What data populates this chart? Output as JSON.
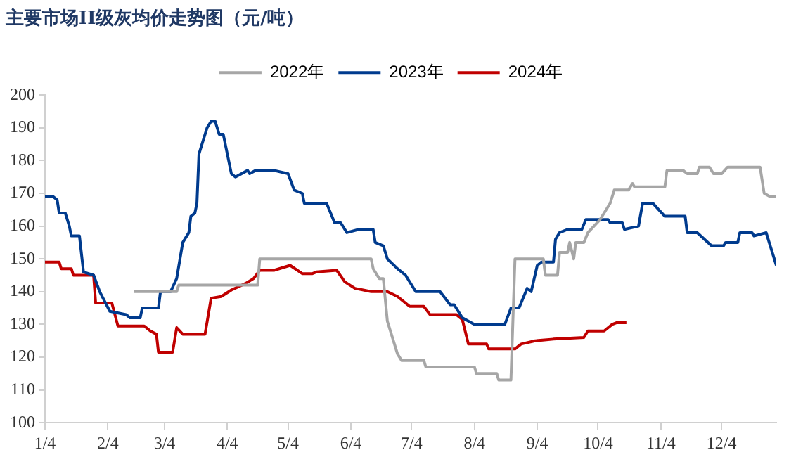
{
  "chart_data": {
    "type": "line",
    "title": "主要市场II级灰均价走势图（元/吨）",
    "legend": "top",
    "xlim": [
      "--01-04",
      "--12-31"
    ],
    "xticks": [
      {
        "value": "--01-04",
        "label": "1/4"
      },
      {
        "value": "--02-04",
        "label": "2/4"
      },
      {
        "value": "--03-04",
        "label": "3/4"
      },
      {
        "value": "--04-04",
        "label": "4/4"
      },
      {
        "value": "--05-04",
        "label": "5/4"
      },
      {
        "value": "--06-04",
        "label": "6/4"
      },
      {
        "value": "--07-04",
        "label": "7/4"
      },
      {
        "value": "--08-04",
        "label": "8/4"
      },
      {
        "value": "--09-04",
        "label": "9/4"
      },
      {
        "value": "--10-04",
        "label": "10/4"
      },
      {
        "value": "--11-04",
        "label": "11/4"
      },
      {
        "value": "--12-04",
        "label": "12/4"
      }
    ],
    "ylim": [
      100,
      200
    ],
    "yticks": [
      100,
      110,
      120,
      130,
      140,
      150,
      160,
      170,
      180,
      190,
      200
    ],
    "series": [
      {
        "name": "2022年",
        "color": "#a6a6a6",
        "x": [
          "--02-17",
          "--03-10",
          "--03-11",
          "--04-19",
          "--04-20",
          "--06-14",
          "--06-15",
          "--06-18",
          "--06-20",
          "--06-22",
          "--06-27",
          "--06-29",
          "--07-10",
          "--07-11",
          "--08-04",
          "--08-05",
          "--08-15",
          "--08-16",
          "--08-22",
          "--08-24",
          "--09-07",
          "--09-08",
          "--09-14",
          "--09-15",
          "--09-19",
          "--09-20",
          "--09-22",
          "--09-23",
          "--09-27",
          "--09-29",
          "--10-05",
          "--10-10",
          "--10-12",
          "--10-19",
          "--10-21",
          "--10-22",
          "--11-06",
          "--11-07",
          "--11-15",
          "--11-17",
          "--11-22",
          "--11-23",
          "--11-28",
          "--11-30",
          "--12-04",
          "--12-07",
          "--12-23",
          "--12-25",
          "--12-28",
          "--12-31"
        ],
        "values": [
          140,
          140,
          142,
          142,
          150,
          150,
          147,
          144,
          144,
          131,
          121,
          119,
          119,
          117,
          117,
          115,
          115,
          113,
          113,
          150,
          150,
          145,
          145,
          152,
          152,
          155,
          150,
          155,
          155,
          158,
          162,
          167,
          171,
          171,
          173,
          172,
          172,
          177,
          177,
          176,
          176,
          178,
          178,
          176,
          176,
          178,
          178,
          170,
          169,
          169
        ]
      },
      {
        "name": "2023年",
        "color": "#003b8e",
        "x": [
          "--01-04",
          "--01-08",
          "--01-10",
          "--01-11",
          "--01-14",
          "--01-16",
          "--01-17",
          "--01-21",
          "--01-23",
          "--01-28",
          "--01-31",
          "--02-05",
          "--02-13",
          "--02-15",
          "--02-20",
          "--02-21",
          "--03-01",
          "--03-02",
          "--03-07",
          "--03-10",
          "--03-13",
          "--03-16",
          "--03-17",
          "--03-19",
          "--03-20",
          "--03-21",
          "--03-23",
          "--03-25",
          "--03-27",
          "--03-29",
          "--03-31",
          "--04-02",
          "--04-06",
          "--04-08",
          "--04-14",
          "--04-15",
          "--04-18",
          "--04-27",
          "--05-04",
          "--05-07",
          "--05-11",
          "--05-12",
          "--05-23",
          "--05-27",
          "--05-30",
          "--06-02",
          "--06-08",
          "--06-15",
          "--06-16",
          "--06-20",
          "--06-22",
          "--06-27",
          "--07-01",
          "--07-06",
          "--07-18",
          "--07-23",
          "--07-25",
          "--07-29",
          "--08-04",
          "--08-19",
          "--08-22",
          "--08-26",
          "--08-30",
          "--09-01",
          "--09-04",
          "--09-06",
          "--09-12",
          "--09-13",
          "--09-15",
          "--09-19",
          "--09-26",
          "--09-28",
          "--10-09",
          "--10-10",
          "--10-16",
          "--10-17",
          "--10-24",
          "--10-26",
          "--10-31",
          "--11-03",
          "--11-06",
          "--11-16",
          "--11-17",
          "--11-22",
          "--11-29",
          "--12-05",
          "--12-06",
          "--12-12",
          "--12-13",
          "--12-19",
          "--12-20",
          "--12-26",
          "--12-28",
          "--12-31"
        ],
        "values": [
          169,
          169,
          168,
          164,
          164,
          160,
          157,
          157,
          146,
          145,
          140,
          134,
          133,
          132,
          132,
          135,
          135,
          140,
          140,
          144,
          155,
          158,
          163,
          164,
          167,
          182,
          186,
          190,
          192,
          192,
          188,
          188,
          176,
          175,
          177,
          176,
          177,
          177,
          176,
          171,
          170,
          167,
          167,
          161,
          161,
          158,
          159,
          159,
          155,
          154,
          150,
          147,
          145,
          140,
          140,
          136,
          136,
          132,
          130,
          130,
          135,
          135,
          141,
          140,
          148,
          149,
          149,
          156,
          158,
          159,
          159,
          162,
          162,
          161,
          161,
          159,
          160,
          167,
          167,
          165,
          163,
          163,
          158,
          158,
          154,
          154,
          155,
          155,
          158,
          158,
          157,
          158,
          154,
          148
        ]
      },
      {
        "name": "2024年",
        "color": "#c00000",
        "x": [
          "--01-04",
          "--01-11",
          "--01-12",
          "--01-17",
          "--01-18",
          "--01-28",
          "--01-29",
          "--02-06",
          "--02-09",
          "--02-22",
          "--02-25",
          "--02-28",
          "--03-01",
          "--03-08",
          "--03-10",
          "--03-13",
          "--03-24",
          "--03-27",
          "--04-01",
          "--04-06",
          "--04-13",
          "--04-17",
          "--04-20",
          "--04-27",
          "--05-05",
          "--05-11",
          "--05-16",
          "--05-18",
          "--05-28",
          "--06-01",
          "--06-06",
          "--06-14",
          "--06-22",
          "--06-27",
          "--07-03",
          "--07-10",
          "--07-13",
          "--07-26",
          "--07-29",
          "--08-01",
          "--08-10",
          "--08-11",
          "--08-24",
          "--08-27",
          "--09-03",
          "--09-12",
          "--09-27",
          "--09-29",
          "--10-07",
          "--10-11",
          "--10-13",
          "--10-18"
        ],
        "values": [
          149,
          149,
          147,
          147,
          145,
          145,
          136.5,
          136.5,
          129.5,
          129.5,
          128,
          127,
          121.5,
          121.5,
          129,
          127,
          127,
          138,
          138.5,
          140.5,
          142.5,
          144,
          146.5,
          146.5,
          148,
          145.5,
          145.5,
          146,
          146.5,
          143,
          141,
          140,
          140,
          138.5,
          135.5,
          135.5,
          133,
          133,
          131.5,
          124,
          124,
          122.5,
          122.5,
          124,
          125,
          125.5,
          126,
          128,
          128,
          130,
          130.5,
          130.5
        ]
      }
    ]
  }
}
